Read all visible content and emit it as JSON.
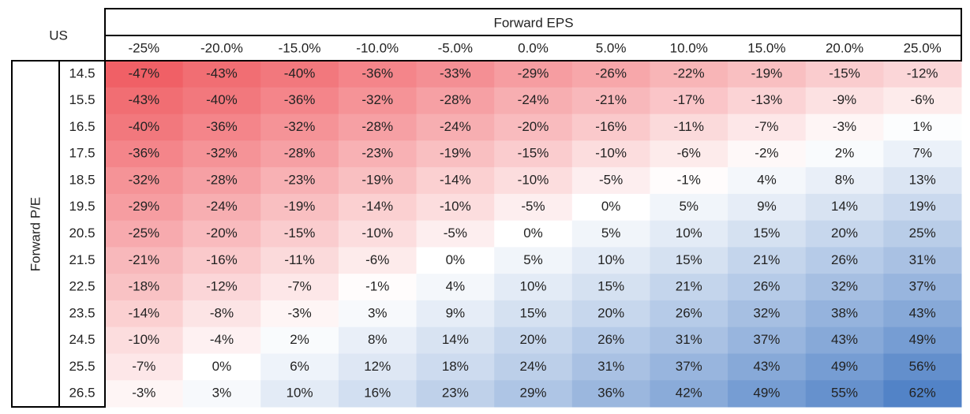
{
  "corner": "US",
  "column_header": "Forward EPS",
  "row_header": "Forward P/E",
  "columns": [
    "-25%",
    "-20.0%",
    "-15.0%",
    "-10.0%",
    "-5.0%",
    "0.0%",
    "5.0%",
    "10.0%",
    "15.0%",
    "20.0%",
    "25.0%"
  ],
  "rows": [
    {
      "label": "14.5",
      "cells": [
        "-47%",
        "-43%",
        "-40%",
        "-36%",
        "-33%",
        "-29%",
        "-26%",
        "-22%",
        "-19%",
        "-15%",
        "-12%"
      ]
    },
    {
      "label": "15.5",
      "cells": [
        "-43%",
        "-40%",
        "-36%",
        "-32%",
        "-28%",
        "-24%",
        "-21%",
        "-17%",
        "-13%",
        "-9%",
        "-6%"
      ]
    },
    {
      "label": "16.5",
      "cells": [
        "-40%",
        "-36%",
        "-32%",
        "-28%",
        "-24%",
        "-20%",
        "-16%",
        "-11%",
        "-7%",
        "-3%",
        "1%"
      ]
    },
    {
      "label": "17.5",
      "cells": [
        "-36%",
        "-32%",
        "-28%",
        "-23%",
        "-19%",
        "-15%",
        "-10%",
        "-6%",
        "-2%",
        "2%",
        "7%"
      ]
    },
    {
      "label": "18.5",
      "cells": [
        "-32%",
        "-28%",
        "-23%",
        "-19%",
        "-14%",
        "-10%",
        "-5%",
        "-1%",
        "4%",
        "8%",
        "13%"
      ]
    },
    {
      "label": "19.5",
      "cells": [
        "-29%",
        "-24%",
        "-19%",
        "-14%",
        "-10%",
        "-5%",
        "0%",
        "5%",
        "9%",
        "14%",
        "19%"
      ]
    },
    {
      "label": "20.5",
      "cells": [
        "-25%",
        "-20%",
        "-15%",
        "-10%",
        "-5%",
        "0%",
        "5%",
        "10%",
        "15%",
        "20%",
        "25%"
      ]
    },
    {
      "label": "21.5",
      "cells": [
        "-21%",
        "-16%",
        "-11%",
        "-6%",
        "0%",
        "5%",
        "10%",
        "15%",
        "21%",
        "26%",
        "31%"
      ]
    },
    {
      "label": "22.5",
      "cells": [
        "-18%",
        "-12%",
        "-7%",
        "-1%",
        "4%",
        "10%",
        "15%",
        "21%",
        "26%",
        "32%",
        "37%"
      ]
    },
    {
      "label": "23.5",
      "cells": [
        "-14%",
        "-8%",
        "-3%",
        "3%",
        "9%",
        "15%",
        "20%",
        "26%",
        "32%",
        "38%",
        "43%"
      ]
    },
    {
      "label": "24.5",
      "cells": [
        "-10%",
        "-4%",
        "2%",
        "8%",
        "14%",
        "20%",
        "26%",
        "31%",
        "37%",
        "43%",
        "49%"
      ]
    },
    {
      "label": "25.5",
      "cells": [
        "-7%",
        "0%",
        "6%",
        "12%",
        "18%",
        "24%",
        "31%",
        "37%",
        "43%",
        "49%",
        "56%"
      ]
    },
    {
      "label": "26.5",
      "cells": [
        "-3%",
        "3%",
        "10%",
        "16%",
        "23%",
        "29%",
        "36%",
        "42%",
        "49%",
        "55%",
        "62%"
      ]
    }
  ]
}
